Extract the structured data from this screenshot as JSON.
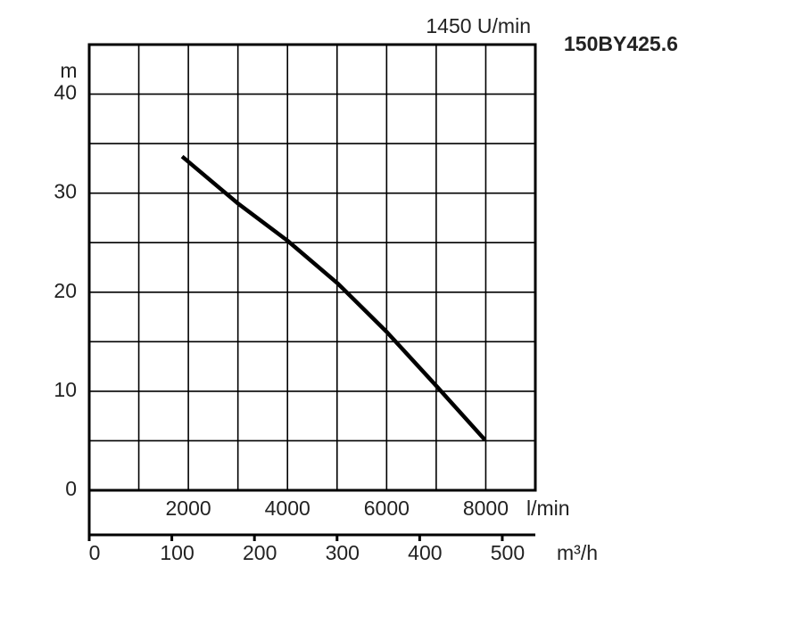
{
  "chart_data": {
    "type": "line",
    "title": "150BY425.6",
    "subtitle": "1450 U/min",
    "y_label": "m",
    "x_label": "l/min",
    "x2_label": "m³/h",
    "x": [
      1874,
      2990,
      4000,
      5009,
      6000,
      7009,
      7982
    ],
    "series": [
      {
        "name": null,
        "color": "#000000",
        "values": [
          33.7,
          29.0,
          25.2,
          20.9,
          16.0,
          10.5,
          5.1
        ]
      }
    ],
    "xlim": [
      0,
      9000
    ],
    "xticks": [
      2000,
      4000,
      6000,
      8000
    ],
    "xminor": [
      1000,
      3000,
      5000,
      7000,
      9000
    ],
    "x2lim": [
      0,
      540
    ],
    "x2ticks": [
      0,
      100,
      200,
      300,
      400,
      500
    ],
    "ylim": [
      0,
      45
    ],
    "yticks": [
      0,
      10,
      20,
      30,
      40
    ],
    "yminor": [
      5,
      15,
      25,
      35,
      45
    ],
    "grid": true
  }
}
